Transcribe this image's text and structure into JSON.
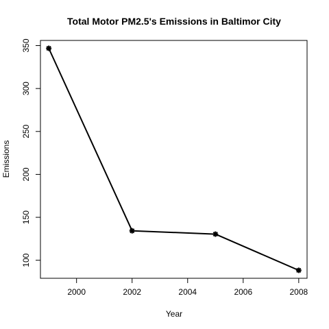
{
  "chart_data": {
    "type": "line",
    "title": "Total Motor PM2.5's Emissions in Baltimor City",
    "xlabel": "Year",
    "ylabel": "Emissions",
    "x": [
      1999,
      2002,
      2005,
      2008
    ],
    "y": [
      346.82,
      134.31,
      130.43,
      88.28
    ],
    "xlim": [
      1998.7,
      2008.3
    ],
    "ylim": [
      79,
      356
    ],
    "xticks": [
      2000,
      2002,
      2004,
      2006,
      2008
    ],
    "yticks": [
      100,
      150,
      200,
      250,
      300,
      350
    ],
    "xtick_labels": [
      "2000",
      "2002",
      "2004",
      "2006",
      "2008"
    ],
    "ytick_labels": [
      "100",
      "150",
      "200",
      "250",
      "300",
      "350"
    ],
    "grid": false,
    "line_color": "#000000",
    "marker": "asterisk"
  }
}
